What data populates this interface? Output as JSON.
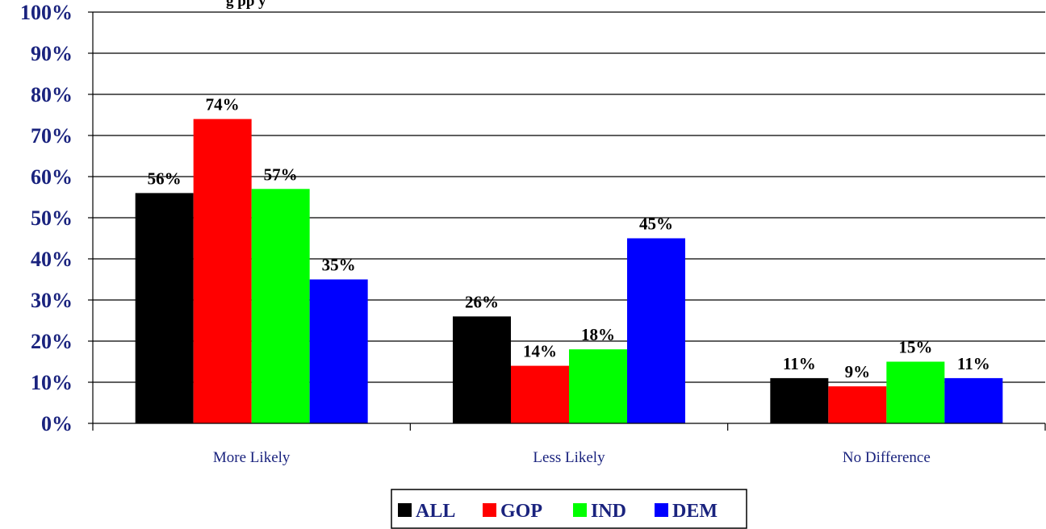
{
  "chart_data": {
    "type": "bar",
    "title": "g                                               pp                                         y",
    "categories": [
      "More Likely",
      "Less Likely",
      "No Difference"
    ],
    "series": [
      {
        "name": "ALL",
        "color": "#000000",
        "values": [
          56,
          26,
          11
        ],
        "labels": [
          "56%",
          "26%",
          "11%"
        ]
      },
      {
        "name": "GOP",
        "color": "#ff0000",
        "values": [
          74,
          14,
          9
        ],
        "labels": [
          "74%",
          "14%",
          "9%"
        ]
      },
      {
        "name": "IND",
        "color": "#00ff00",
        "values": [
          57,
          18,
          15
        ],
        "labels": [
          "57%",
          "18%",
          "15%"
        ]
      },
      {
        "name": "DEM",
        "color": "#0000ff",
        "values": [
          35,
          45,
          11
        ],
        "labels": [
          "35%",
          "45%",
          "11%"
        ]
      }
    ],
    "ylim": [
      0,
      100
    ],
    "yticks": [
      "0%",
      "10%",
      "20%",
      "30%",
      "40%",
      "50%",
      "60%",
      "70%",
      "80%",
      "90%",
      "100%"
    ],
    "grid": true,
    "legend_position": "bottom",
    "axis_text_color": "#1a237e"
  }
}
